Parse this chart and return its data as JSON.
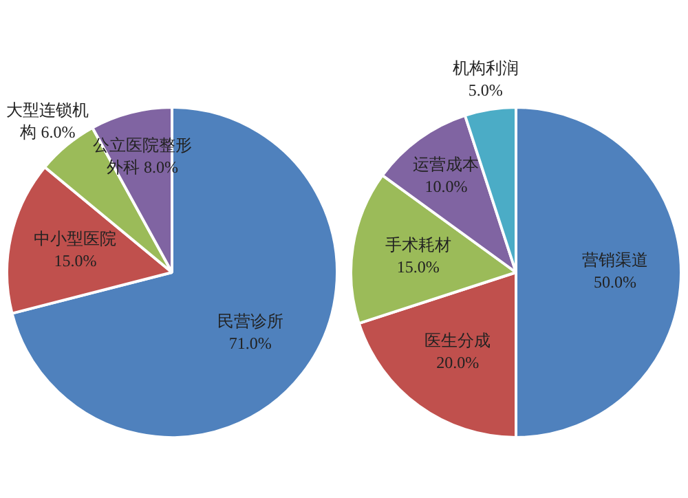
{
  "chart_data": [
    {
      "type": "pie",
      "categories": [
        "民营诊所",
        "中小型医院",
        "大型连锁机构",
        "公立医院整形外科"
      ],
      "values": [
        71,
        15,
        6,
        8
      ],
      "value_labels": [
        "71.0%",
        "15.0%",
        "6.0%",
        "8.0%"
      ],
      "colors": [
        "#4f81bd",
        "#c0504d",
        "#9bbb59",
        "#8064a2"
      ],
      "legend": false
    },
    {
      "type": "pie",
      "categories": [
        "营销渠道",
        "医生分成",
        "手术耗材",
        "运营成本",
        "机构利润"
      ],
      "values": [
        50,
        20,
        15,
        10,
        5
      ],
      "value_labels": [
        "50.0%",
        "20.0%",
        "15.0%",
        "10.0%",
        "5.0%"
      ],
      "colors": [
        "#4f81bd",
        "#c0504d",
        "#9bbb59",
        "#8064a2",
        "#4bacc6"
      ],
      "legend": false
    }
  ]
}
